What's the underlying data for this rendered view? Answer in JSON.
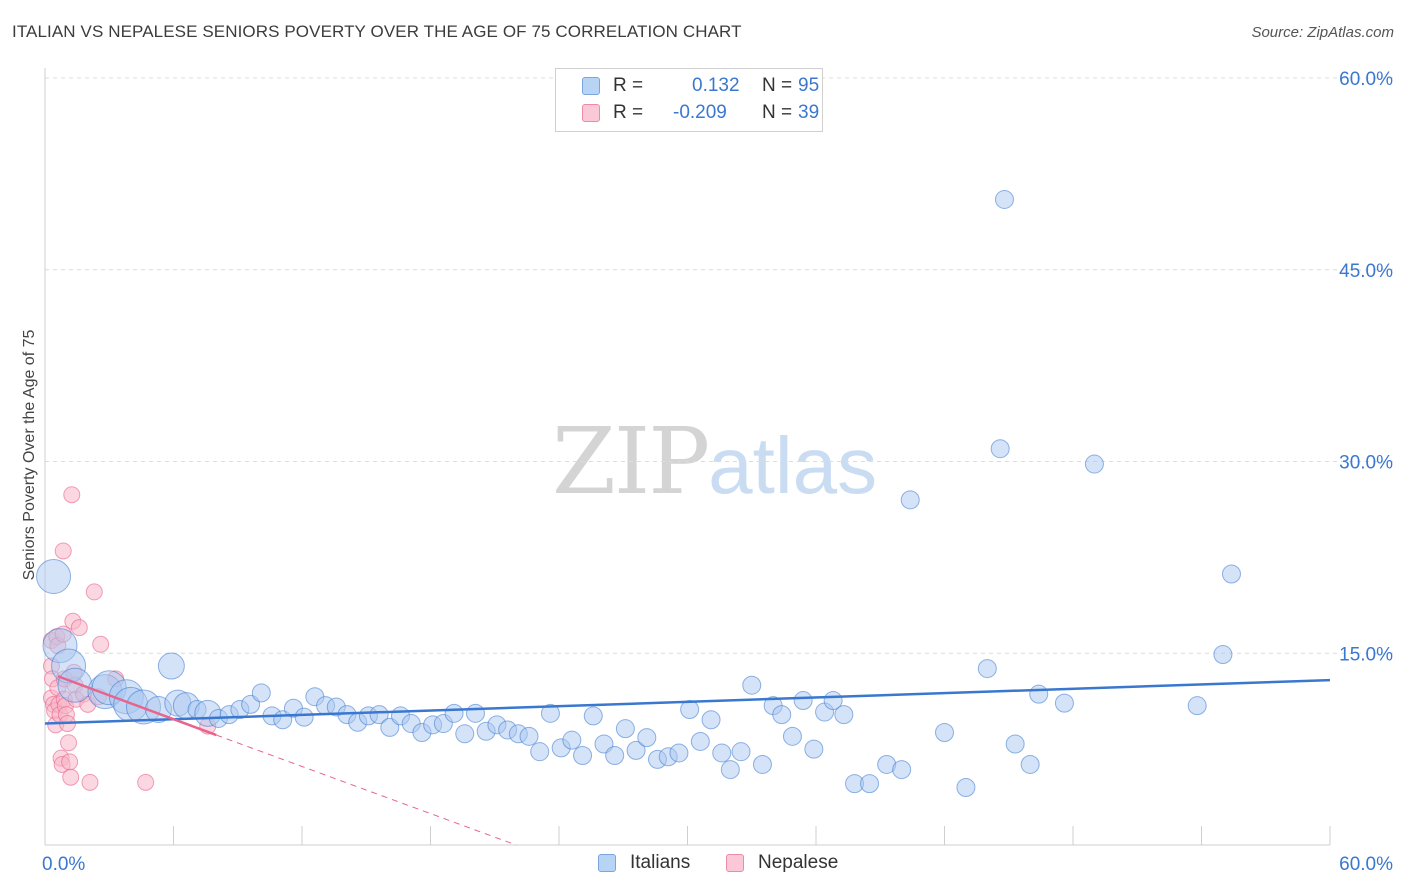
{
  "title": "ITALIAN VS NEPALESE SENIORS POVERTY OVER THE AGE OF 75 CORRELATION CHART",
  "source": "Source: ZipAtlas.com",
  "watermark": {
    "zip": "ZIP",
    "atlas": "atlas"
  },
  "legend": {
    "italians": {
      "r_label": "R =",
      "r_value": "0.132",
      "n_label": "N =",
      "n_value": "95"
    },
    "nepalese": {
      "r_label": "R =",
      "r_value": "-0.209",
      "n_label": "N =",
      "n_value": "39"
    }
  },
  "bottom_legend": {
    "italians": "Italians",
    "nepalese": "Nepalese"
  },
  "colors": {
    "blue": "#3a78d0",
    "blue_fill": "#a9c8f0",
    "pink": "#e8648c",
    "pink_fill": "#f7b6c8"
  },
  "chart_data": {
    "type": "scatter",
    "title": "ITALIAN VS NEPALESE SENIORS POVERTY OVER THE AGE OF 75 CORRELATION CHART",
    "xlabel": "",
    "ylabel": "Seniors Poverty Over the Age of 75",
    "xlim": [
      0,
      60
    ],
    "ylim": [
      0,
      60
    ],
    "x_tick_labels": [
      "0.0%",
      "60.0%"
    ],
    "y_ticks": [
      {
        "value": 15,
        "label": "15.0%"
      },
      {
        "value": 30,
        "label": "30.0%"
      },
      {
        "value": 45,
        "label": "45.0%"
      },
      {
        "value": 60,
        "label": "60.0%"
      }
    ],
    "series": [
      {
        "name": "Italians",
        "color": "#3a78d0",
        "trend": {
          "x0": 0,
          "y0": 9.5,
          "x1": 60,
          "y1": 12.9
        },
        "points": [
          [
            0.4,
            21.0,
            3
          ],
          [
            0.7,
            15.6,
            3
          ],
          [
            1.1,
            14.0,
            3
          ],
          [
            1.4,
            12.5,
            3
          ],
          [
            2.8,
            12.0,
            3
          ],
          [
            3.0,
            12.3,
            3
          ],
          [
            3.8,
            11.6,
            3
          ],
          [
            4.0,
            11.0,
            3
          ],
          [
            4.6,
            10.8,
            3
          ],
          [
            5.3,
            10.6,
            2
          ],
          [
            5.9,
            14.0,
            2
          ],
          [
            6.2,
            11.1,
            2
          ],
          [
            6.6,
            10.9,
            2
          ],
          [
            7.1,
            10.6,
            1
          ],
          [
            7.6,
            10.3,
            2
          ],
          [
            8.1,
            9.9,
            1
          ],
          [
            8.6,
            10.2,
            1
          ],
          [
            9.1,
            10.6,
            1
          ],
          [
            9.6,
            11.0,
            1
          ],
          [
            10.1,
            11.9,
            1
          ],
          [
            10.6,
            10.1,
            1
          ],
          [
            11.1,
            9.8,
            1
          ],
          [
            11.6,
            10.7,
            1
          ],
          [
            12.1,
            10.0,
            1
          ],
          [
            12.6,
            11.6,
            1
          ],
          [
            13.1,
            10.9,
            1
          ],
          [
            13.6,
            10.8,
            1
          ],
          [
            14.1,
            10.2,
            1
          ],
          [
            14.6,
            9.6,
            1
          ],
          [
            15.1,
            10.1,
            1
          ],
          [
            15.6,
            10.2,
            1
          ],
          [
            16.1,
            9.2,
            1
          ],
          [
            16.6,
            10.1,
            1
          ],
          [
            17.1,
            9.5,
            1
          ],
          [
            17.6,
            8.8,
            1
          ],
          [
            18.1,
            9.4,
            1
          ],
          [
            18.6,
            9.5,
            1
          ],
          [
            19.1,
            10.3,
            1
          ],
          [
            19.6,
            8.7,
            1
          ],
          [
            20.1,
            10.3,
            1
          ],
          [
            20.6,
            8.9,
            1
          ],
          [
            21.1,
            9.4,
            1
          ],
          [
            21.6,
            9.0,
            1
          ],
          [
            22.1,
            8.7,
            1
          ],
          [
            22.6,
            8.5,
            1
          ],
          [
            23.1,
            7.3,
            1
          ],
          [
            23.6,
            10.3,
            1
          ],
          [
            24.1,
            7.6,
            1
          ],
          [
            24.6,
            8.2,
            1
          ],
          [
            25.1,
            7.0,
            1
          ],
          [
            25.6,
            10.1,
            1
          ],
          [
            26.1,
            7.9,
            1
          ],
          [
            26.6,
            7.0,
            1
          ],
          [
            27.1,
            9.1,
            1
          ],
          [
            27.6,
            7.4,
            1
          ],
          [
            28.1,
            8.4,
            1
          ],
          [
            28.6,
            6.7,
            1
          ],
          [
            29.1,
            6.9,
            1
          ],
          [
            29.6,
            7.2,
            1
          ],
          [
            30.1,
            10.6,
            1
          ],
          [
            30.6,
            8.1,
            1
          ],
          [
            31.1,
            9.8,
            1
          ],
          [
            31.6,
            7.2,
            1
          ],
          [
            32.0,
            5.9,
            1
          ],
          [
            32.5,
            7.3,
            1
          ],
          [
            33.0,
            12.5,
            1
          ],
          [
            33.5,
            6.3,
            1
          ],
          [
            34.0,
            10.9,
            1
          ],
          [
            34.4,
            10.2,
            1
          ],
          [
            34.9,
            8.5,
            1
          ],
          [
            35.4,
            11.3,
            1
          ],
          [
            35.9,
            7.5,
            1
          ],
          [
            36.4,
            10.4,
            1
          ],
          [
            36.8,
            11.3,
            1
          ],
          [
            37.3,
            10.2,
            1
          ],
          [
            37.8,
            4.8,
            1
          ],
          [
            38.5,
            4.8,
            1
          ],
          [
            39.3,
            6.3,
            1
          ],
          [
            40.0,
            5.9,
            1
          ],
          [
            40.4,
            27.0,
            1
          ],
          [
            42.0,
            8.8,
            1
          ],
          [
            43.0,
            4.5,
            1
          ],
          [
            44.0,
            13.8,
            1
          ],
          [
            44.6,
            31.0,
            1
          ],
          [
            44.8,
            50.5,
            1
          ],
          [
            45.3,
            7.9,
            1
          ],
          [
            46.0,
            6.3,
            1
          ],
          [
            46.4,
            11.8,
            1
          ],
          [
            47.6,
            11.1,
            1
          ],
          [
            49.0,
            29.8,
            1
          ],
          [
            53.8,
            10.9,
            1
          ],
          [
            55.0,
            14.9,
            1
          ],
          [
            55.4,
            21.2,
            1
          ]
        ]
      },
      {
        "name": "Nepalese",
        "color": "#e8648c",
        "trend": {
          "x0": 0.6,
          "y0": 13.2,
          "x1": 8.0,
          "y1": 8.6
        },
        "trend_dashed": {
          "x0": 8.0,
          "y0": 8.6,
          "x1": 22.0,
          "y1": 0.0
        },
        "points": [
          [
            0.3,
            16.0
          ],
          [
            0.3,
            14.0
          ],
          [
            0.3,
            11.5
          ],
          [
            0.35,
            13.0
          ],
          [
            0.4,
            11.0
          ],
          [
            0.45,
            10.5
          ],
          [
            0.5,
            9.4
          ],
          [
            0.55,
            16.3
          ],
          [
            0.6,
            15.6
          ],
          [
            0.6,
            12.3
          ],
          [
            0.65,
            11.0
          ],
          [
            0.7,
            10.2
          ],
          [
            0.75,
            6.8
          ],
          [
            0.8,
            6.3
          ],
          [
            0.85,
            23.0
          ],
          [
            0.85,
            16.5
          ],
          [
            0.9,
            13.0
          ],
          [
            0.9,
            11.4
          ],
          [
            0.95,
            10.9
          ],
          [
            1.0,
            10.2
          ],
          [
            1.05,
            9.5
          ],
          [
            1.1,
            8.0
          ],
          [
            1.15,
            6.5
          ],
          [
            1.2,
            5.3
          ],
          [
            1.25,
            27.4
          ],
          [
            1.3,
            17.5
          ],
          [
            1.35,
            13.5
          ],
          [
            1.4,
            12.5
          ],
          [
            1.45,
            11.4
          ],
          [
            1.6,
            17.0
          ],
          [
            1.8,
            11.8
          ],
          [
            2.0,
            11.0
          ],
          [
            2.1,
            4.9
          ],
          [
            2.3,
            19.8
          ],
          [
            2.5,
            11.6
          ],
          [
            2.6,
            15.7
          ],
          [
            3.3,
            13.0
          ],
          [
            4.7,
            4.9
          ],
          [
            7.6,
            9.3
          ]
        ]
      }
    ]
  }
}
